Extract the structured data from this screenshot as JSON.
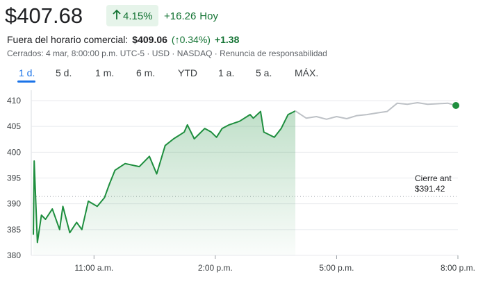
{
  "header": {
    "price": "$407.68",
    "change_pct": "4.15%",
    "change_abs": "+16.26",
    "change_period": "Hoy",
    "after_hours_label": "Fuera del horario comercial:",
    "after_hours_price": "$409.06",
    "after_hours_pct": "(↑0.34%)",
    "after_hours_abs": "+1.38",
    "status": "Cerrados: 4 mar, 8:00:00 p.m. UTC-5 · USD · NASDAQ · Renuncia de responsabilidad"
  },
  "tabs": {
    "items": [
      "1 d.",
      "5 d.",
      "1 m.",
      "6 m.",
      "YTD",
      "1 a.",
      "5 a.",
      "MÁX."
    ],
    "selected": 0
  },
  "chart_data": {
    "type": "line",
    "xlim": [
      9.5,
      20
    ],
    "xticks": [
      {
        "value": 11,
        "label": "11:00 a.m."
      },
      {
        "value": 14,
        "label": "2:00 p.m."
      },
      {
        "value": 17,
        "label": "5:00 p.m."
      },
      {
        "value": 20,
        "label": "8:00 p.m."
      }
    ],
    "ylim": [
      380,
      410
    ],
    "yticks": [
      380,
      385,
      390,
      395,
      400,
      405,
      410
    ],
    "grid": true,
    "series": [
      {
        "color": "#1e8e3e",
        "area": true,
        "x": [
          9.5,
          9.52,
          9.6,
          9.7,
          9.8,
          9.97,
          10.15,
          10.23,
          10.4,
          10.57,
          10.7,
          10.86,
          11.08,
          11.26,
          11.38,
          11.52,
          11.77,
          12.12,
          12.37,
          12.55,
          12.76,
          12.97,
          13.23,
          13.31,
          13.48,
          13.74,
          13.9,
          14.03,
          14.17,
          14.34,
          14.6,
          14.86,
          14.94,
          15.12,
          15.2,
          15.46,
          15.63,
          15.8,
          15.98
        ],
        "values": [
          384.0,
          398.3,
          382.5,
          387.8,
          387.0,
          389.0,
          385.0,
          389.5,
          384.4,
          386.4,
          385.0,
          390.5,
          389.5,
          391.2,
          393.8,
          396.5,
          397.8,
          397.2,
          399.2,
          395.8,
          401.3,
          402.6,
          403.9,
          405.3,
          402.6,
          404.6,
          403.9,
          402.9,
          404.6,
          405.3,
          406.0,
          407.3,
          406.6,
          407.9,
          403.9,
          402.9,
          404.6,
          407.3,
          408.0
        ]
      },
      {
        "color": "#bdc1c6",
        "area": false,
        "x": [
          15.98,
          16.25,
          16.5,
          16.75,
          17.0,
          17.25,
          17.5,
          17.75,
          18.0,
          18.25,
          18.5,
          18.75,
          19.0,
          19.25,
          19.5,
          19.75,
          19.95
        ],
        "values": [
          408.0,
          406.6,
          406.9,
          406.4,
          406.9,
          406.5,
          407.1,
          407.3,
          407.6,
          407.9,
          409.5,
          409.3,
          409.6,
          409.3,
          409.4,
          409.5,
          409.06
        ]
      }
    ],
    "end_marker_color": "#1e8e3e",
    "previous_close": {
      "value": 391.42,
      "label": "$391.42",
      "title": "Cierre ant"
    }
  }
}
